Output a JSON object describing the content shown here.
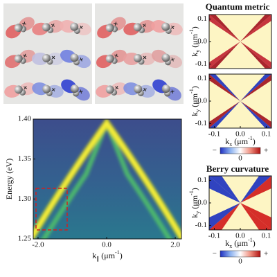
{
  "chart_data": [
    {
      "type": "heatmap",
      "xlabel": [
        "k",
        "∥",
        " (μm",
        "-1",
        ")"
      ],
      "ylabel": "Energy (eV)",
      "xlim": [
        -2.14,
        2.18
      ],
      "ylim": [
        1.25,
        1.4
      ],
      "xticks": [
        {
          "value": -2.0,
          "label": "-2.0"
        },
        {
          "value": 0.0,
          "label": "0.0"
        },
        {
          "value": 2.0,
          "label": "2.0"
        }
      ],
      "yticks": [
        1.25,
        {
          "value": 1.3,
          "label": "1.30"
        },
        1.35,
        {
          "value": 1.4,
          "label": "1.40"
        }
      ]
    },
    {
      "type": "heatmap",
      "title": "Quantum metric",
      "ylabel": [
        "k",
        "y",
        " (μm",
        "-1",
        ")"
      ],
      "xlim": [
        -0.12,
        0.12
      ],
      "ylim": [
        -0.12,
        0.12
      ],
      "yticks": [
        -0.1,
        {
          "value": 0.0,
          "label": "0.0"
        },
        0.1
      ]
    },
    {
      "type": "heatmap",
      "xlabel": [
        "k",
        "x",
        " (μm",
        "-1",
        ")"
      ],
      "ylabel": [
        "k",
        "y",
        " (μm",
        "-1",
        ")"
      ],
      "xlim": [
        -0.12,
        0.12
      ],
      "ylim": [
        -0.12,
        0.12
      ],
      "xticks": [
        -0.1,
        {
          "value": 0.0,
          "label": "0.0"
        },
        0.1
      ],
      "yticks": [
        -0.1,
        {
          "value": 0.0,
          "label": "0.0"
        },
        0.1
      ],
      "colorbar": [
        "−",
        "0",
        "+"
      ]
    },
    {
      "type": "heatmap",
      "title": "Berry curvature",
      "xlabel": [
        "k",
        "x",
        " (μm",
        "-1",
        ")"
      ],
      "ylabel": [
        "k",
        "y",
        " (μm",
        "-1",
        ")"
      ],
      "xlim": [
        -0.12,
        0.12
      ],
      "ylim": [
        -0.12,
        0.12
      ],
      "xticks": [
        -0.1,
        {
          "value": 0.0,
          "label": "0.0"
        },
        0.1
      ],
      "yticks": [
        -0.1,
        {
          "value": 0.0,
          "label": "0.0"
        },
        0.1
      ],
      "colorbar": [
        "−",
        "0",
        "+"
      ]
    }
  ]
}
